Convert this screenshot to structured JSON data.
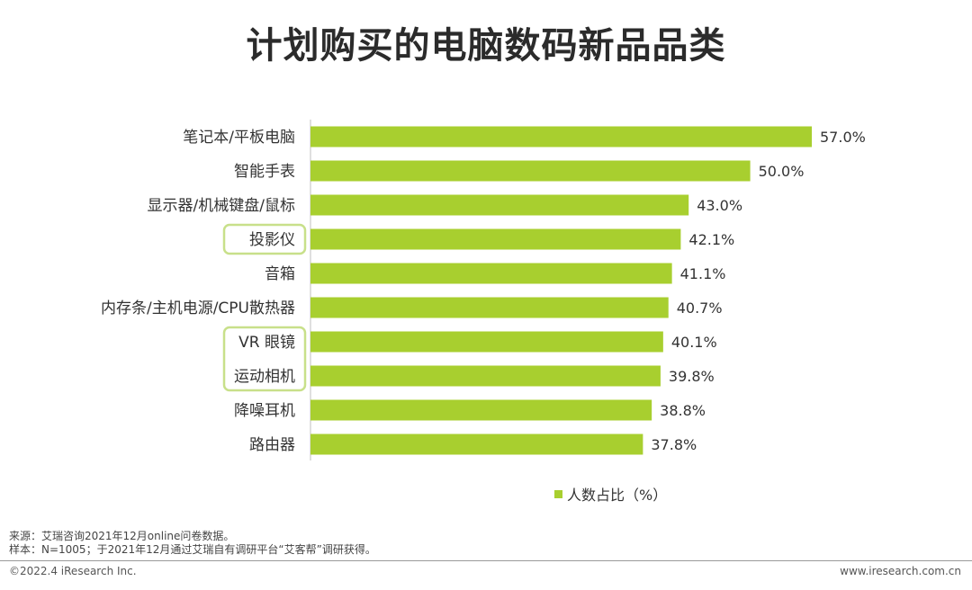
{
  "page": {
    "title": "计划购买的电脑数码新品品类"
  },
  "chart_data": {
    "type": "bar",
    "orientation": "horizontal",
    "categories": [
      "笔记本/平板电脑",
      "智能手表",
      "显示器/机械键盘/鼠标",
      "投影仪",
      "音箱",
      "内存条/主机电源/CPU散热器",
      "VR 眼镜",
      "运动相机",
      "降噪耳机",
      "路由器"
    ],
    "series": [
      {
        "name": "人数占比（%）",
        "values": [
          57.0,
          50.0,
          43.0,
          42.1,
          41.1,
          40.7,
          40.1,
          39.8,
          38.8,
          37.8
        ],
        "labels": [
          "57.0%",
          "50.0%",
          "43.0%",
          "42.1%",
          "41.1%",
          "40.7%",
          "40.1%",
          "39.8%",
          "38.8%",
          "37.8%"
        ]
      }
    ],
    "xlim": [
      0,
      57.0
    ],
    "grid": false,
    "legend_position": "bottom",
    "bar_color": "#a8cf2f",
    "highlight_outline_color": "#c8e08a",
    "highlighted_groups": [
      [
        "投影仪"
      ],
      [
        "VR 眼镜",
        "运动相机"
      ]
    ]
  },
  "footer": {
    "source": "来源：艾瑞咨询2021年12月online问卷数据。",
    "sample": "样本：N=1005；于2021年12月通过艾瑞自有调研平台“艾客帮”调研获得。",
    "copyright": "©2022.4 iResearch Inc.",
    "website": "www.iresearch.com.cn"
  }
}
